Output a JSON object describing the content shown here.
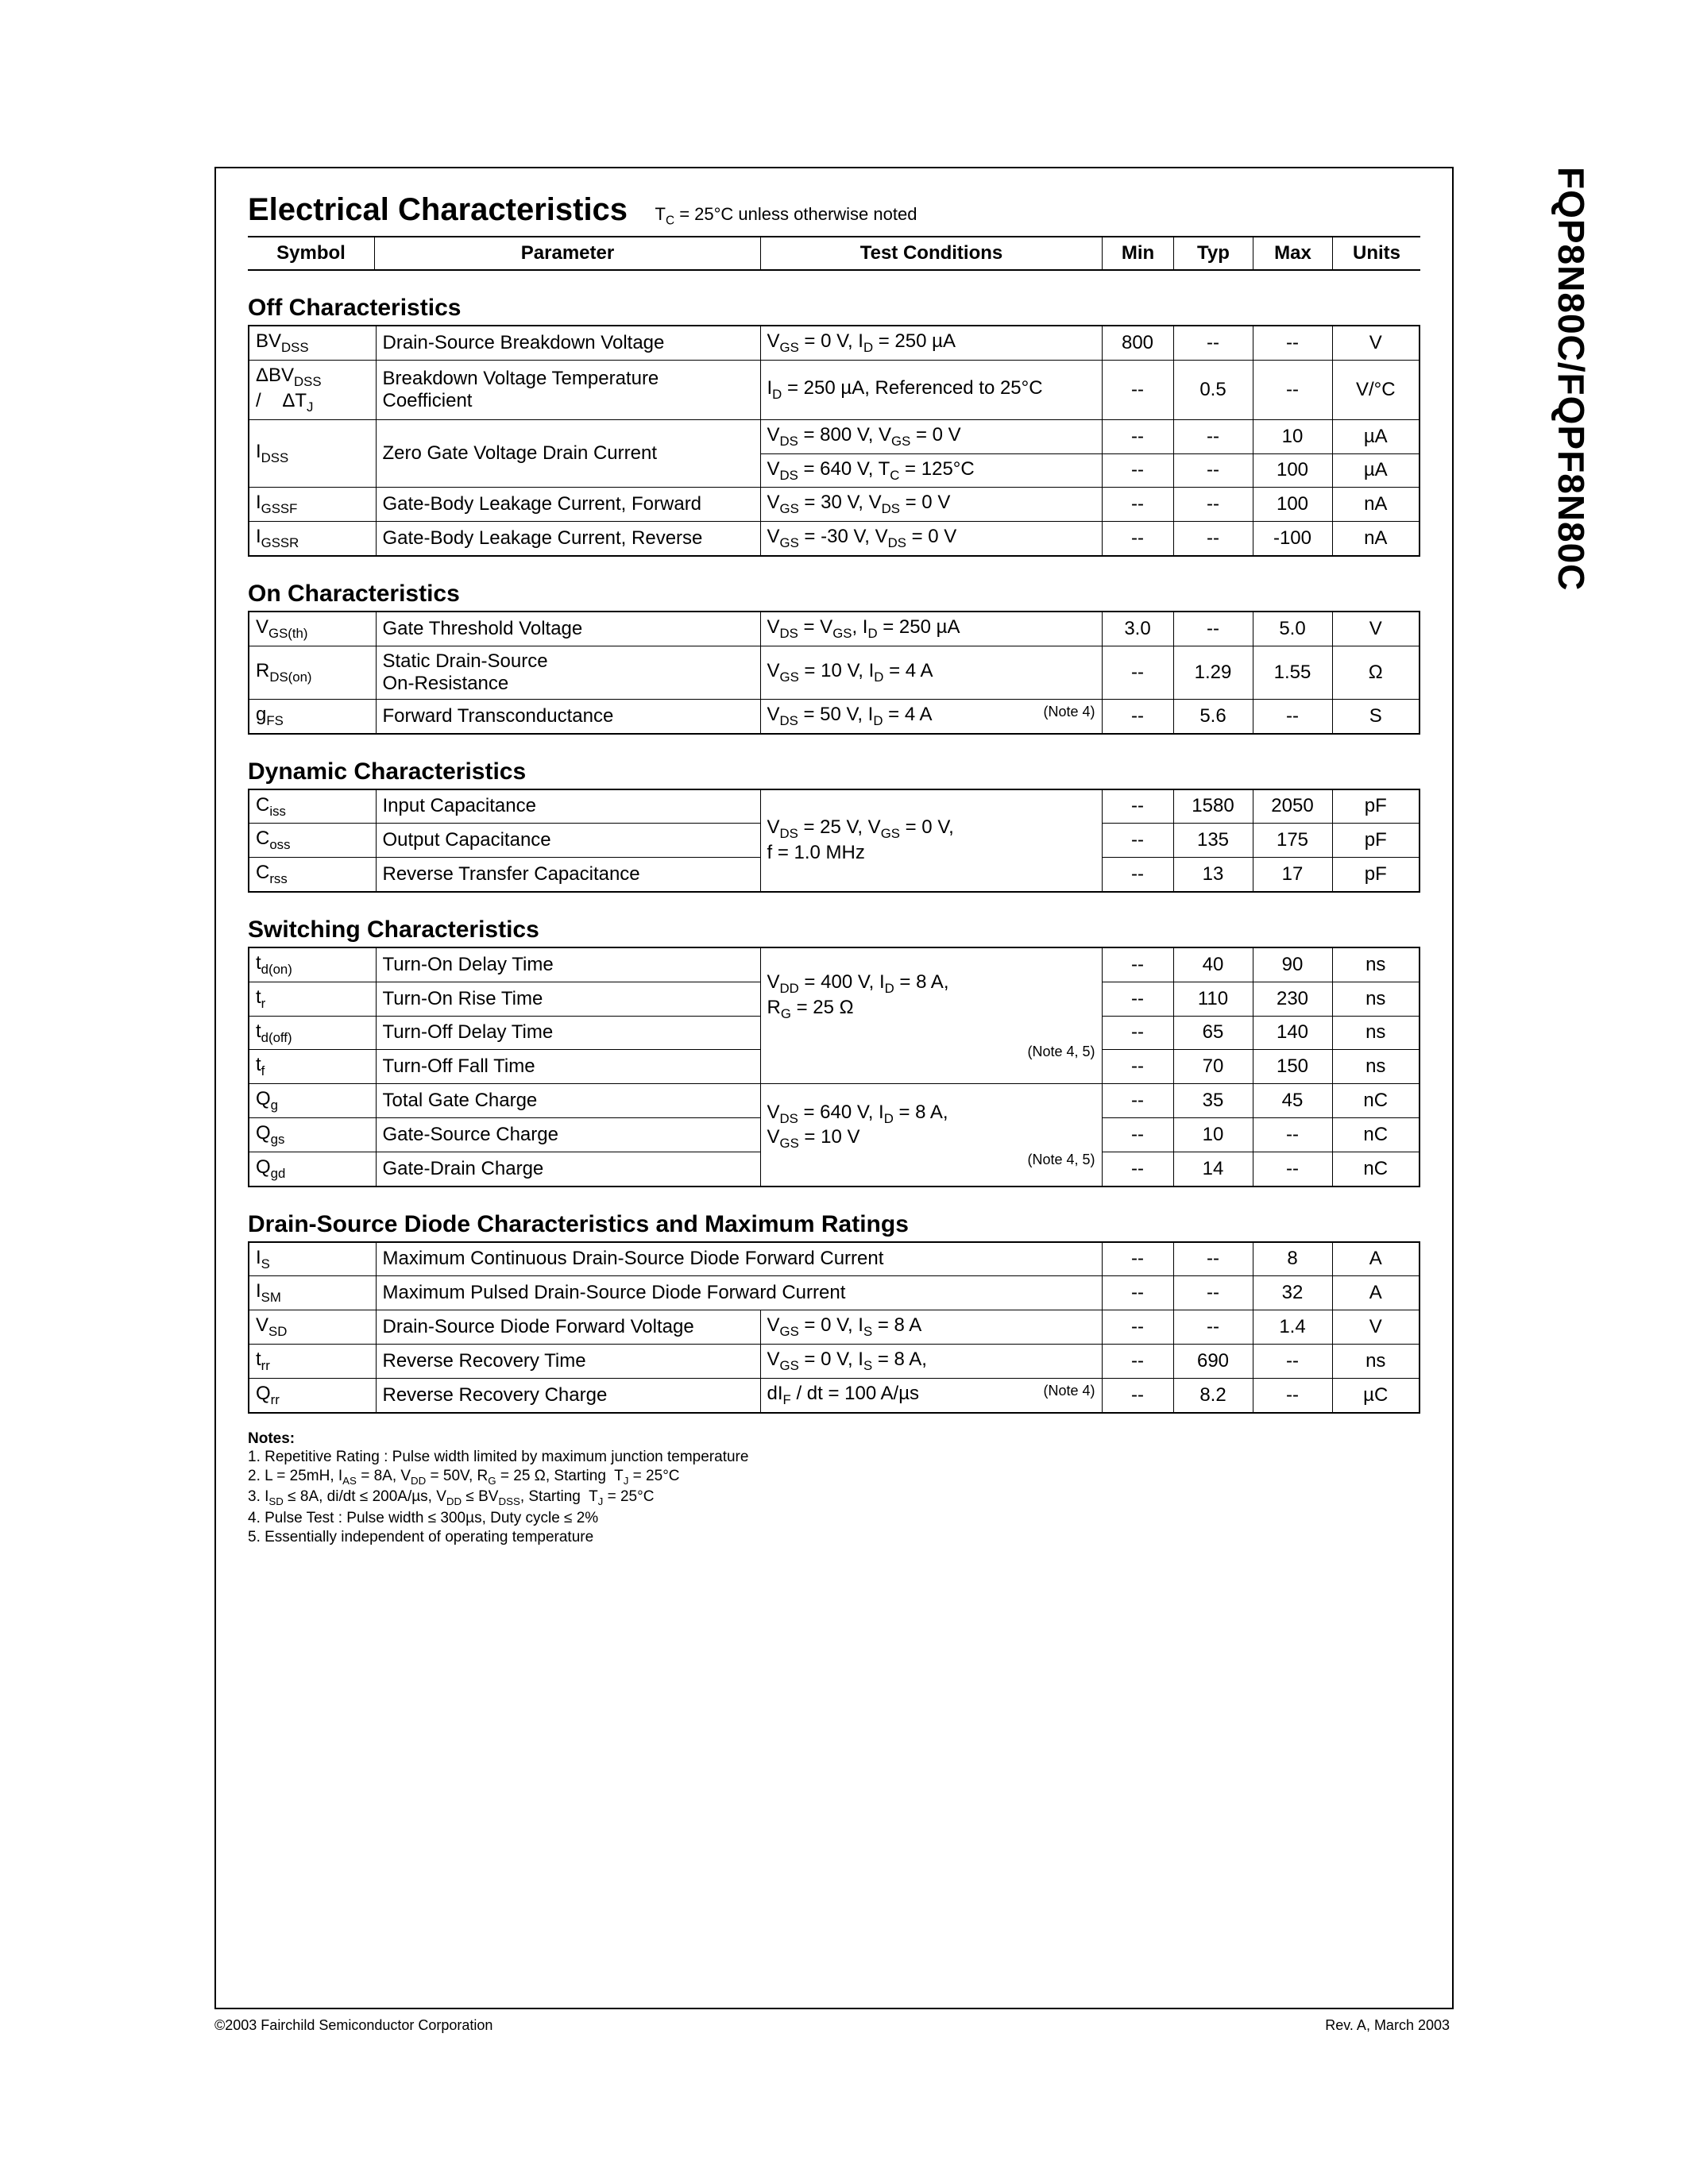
{
  "sideTitle": "FQP8N80C/FQPF8N80C",
  "mainTitle": "Electrical Characteristics",
  "titleNote": "T_C = 25°C unless otherwise noted",
  "headers": {
    "symbol": "Symbol",
    "parameter": "Parameter",
    "test": "Test Conditions",
    "min": "Min",
    "typ": "Typ",
    "max": "Max",
    "units": "Units"
  },
  "sec1": {
    "title": "Off Characteristics"
  },
  "r1": {
    "sym": "BV_DSS",
    "param": "Drain-Source Breakdown Voltage",
    "test": "V_GS = 0 V, I_D = 250 µA",
    "min": "800",
    "typ": "--",
    "max": "--",
    "unit": "V"
  },
  "r2": {
    "sym": "ΔBV_DSS /    ΔT_J",
    "param": "Breakdown Voltage Temperature Coefficient",
    "test": "I_D = 250 µA, Referenced to 25°C",
    "min": "--",
    "typ": "0.5",
    "max": "--",
    "unit": "V/°C"
  },
  "r3": {
    "sym": "I_DSS",
    "param": "Zero Gate Voltage Drain Current",
    "test1": "V_DS = 800 V, V_GS = 0 V",
    "min1": "--",
    "typ1": "--",
    "max1": "10",
    "unit1": "µA",
    "test2": "V_DS = 640 V, T_C = 125°C",
    "min2": "--",
    "typ2": "--",
    "max2": "100",
    "unit2": "µA"
  },
  "r4": {
    "sym": "I_GSSF",
    "param": "Gate-Body Leakage Current, Forward",
    "test": "V_GS = 30 V, V_DS = 0 V",
    "min": "--",
    "typ": "--",
    "max": "100",
    "unit": "nA"
  },
  "r5": {
    "sym": "I_GSSR",
    "param": "Gate-Body Leakage Current, Reverse",
    "test": "V_GS = -30 V, V_DS = 0 V",
    "min": "--",
    "typ": "--",
    "max": "-100",
    "unit": "nA"
  },
  "sec2": {
    "title": "On Characteristics"
  },
  "r6": {
    "sym": "V_GS(th)",
    "param": "Gate Threshold Voltage",
    "test": "V_DS = V_GS, I_D = 250 µA",
    "min": "3.0",
    "typ": "--",
    "max": "5.0",
    "unit": "V"
  },
  "r7": {
    "sym": "R_DS(on)",
    "param": "Static Drain-Source On-Resistance",
    "test": "V_GS = 10 V, I_D = 4 A",
    "min": "--",
    "typ": "1.29",
    "max": "1.55",
    "unit": "Ω"
  },
  "r8": {
    "sym": "g_FS",
    "param": "Forward Transconductance",
    "test": "V_DS = 50 V, I_D = 4 A",
    "note": "(Note 4)",
    "min": "--",
    "typ": "5.6",
    "max": "--",
    "unit": "S"
  },
  "sec3": {
    "title": "Dynamic Characteristics"
  },
  "dynTest": "V_DS = 25 V, V_GS = 0 V, f = 1.0 MHz",
  "r9": {
    "sym": "C_iss",
    "param": "Input Capacitance",
    "min": "--",
    "typ": "1580",
    "max": "2050",
    "unit": "pF"
  },
  "r10": {
    "sym": "C_oss",
    "param": "Output Capacitance",
    "min": "--",
    "typ": "135",
    "max": "175",
    "unit": "pF"
  },
  "r11": {
    "sym": "C_rss",
    "param": "Reverse Transfer Capacitance",
    "min": "--",
    "typ": "13",
    "max": "17",
    "unit": "pF"
  },
  "sec4": {
    "title": "Switching Characteristics"
  },
  "swTest1": "V_DD = 400 V, I_D = 8 A, R_G = 25 Ω",
  "swNote1": "(Note 4, 5)",
  "swTest2": "V_DS = 640 V, I_D = 8 A, V_GS = 10 V",
  "swNote2": "(Note 4, 5)",
  "r12": {
    "sym": "t_d(on)",
    "param": "Turn-On Delay Time",
    "min": "--",
    "typ": "40",
    "max": "90",
    "unit": "ns"
  },
  "r13": {
    "sym": "t_r",
    "param": "Turn-On Rise Time",
    "min": "--",
    "typ": "110",
    "max": "230",
    "unit": "ns"
  },
  "r14": {
    "sym": "t_d(off)",
    "param": "Turn-Off Delay Time",
    "min": "--",
    "typ": "65",
    "max": "140",
    "unit": "ns"
  },
  "r15": {
    "sym": "t_f",
    "param": "Turn-Off Fall Time",
    "min": "--",
    "typ": "70",
    "max": "150",
    "unit": "ns"
  },
  "r16": {
    "sym": "Q_g",
    "param": "Total Gate Charge",
    "min": "--",
    "typ": "35",
    "max": "45",
    "unit": "nC"
  },
  "r17": {
    "sym": "Q_gs",
    "param": "Gate-Source Charge",
    "min": "--",
    "typ": "10",
    "max": "--",
    "unit": "nC"
  },
  "r18": {
    "sym": "Q_gd",
    "param": "Gate-Drain Charge",
    "min": "--",
    "typ": "14",
    "max": "--",
    "unit": "nC"
  },
  "sec5": {
    "title": "Drain-Source Diode Characteristics and Maximum Ratings"
  },
  "r19": {
    "sym": "I_S",
    "param": "Maximum Continuous Drain-Source Diode Forward Current",
    "min": "--",
    "typ": "--",
    "max": "8",
    "unit": "A"
  },
  "r20": {
    "sym": "I_SM",
    "param": "Maximum Pulsed Drain-Source Diode Forward Current",
    "min": "--",
    "typ": "--",
    "max": "32",
    "unit": "A"
  },
  "r21": {
    "sym": "V_SD",
    "param": "Drain-Source Diode Forward Voltage",
    "test": "V_GS = 0 V, I_S = 8 A",
    "min": "--",
    "typ": "--",
    "max": "1.4",
    "unit": "V"
  },
  "r22": {
    "sym": "t_rr",
    "param": "Reverse Recovery Time",
    "test": "V_GS = 0 V, I_S = 8 A,",
    "min": "--",
    "typ": "690",
    "max": "--",
    "unit": "ns"
  },
  "r23": {
    "sym": "Q_rr",
    "param": "Reverse Recovery Charge",
    "test": "dI_F / dt = 100 A/µs",
    "note": "(Note 4)",
    "min": "--",
    "typ": "8.2",
    "max": "--",
    "unit": "µC"
  },
  "notesTitle": "Notes:",
  "note1": "1. Repetitive Rating : Pulse width limited by maximum junction temperature",
  "note2": "2. L = 25mH, I_AS = 8A, V_DD = 50V, R_G = 25 Ω, Starting  T_J = 25°C",
  "note3": "3. I_SD ≤ 8A, di/dt ≤ 200A/µs, V_DD ≤ BV_DSS, Starting  T_J = 25°C",
  "note4": "4. Pulse Test : Pulse width ≤ 300µs, Duty cycle ≤ 2%",
  "note5": "5. Essentially independent of operating temperature",
  "footerLeft": "©2003 Fairchild Semiconductor Corporation",
  "footerRight": "Rev. A, March 2003"
}
